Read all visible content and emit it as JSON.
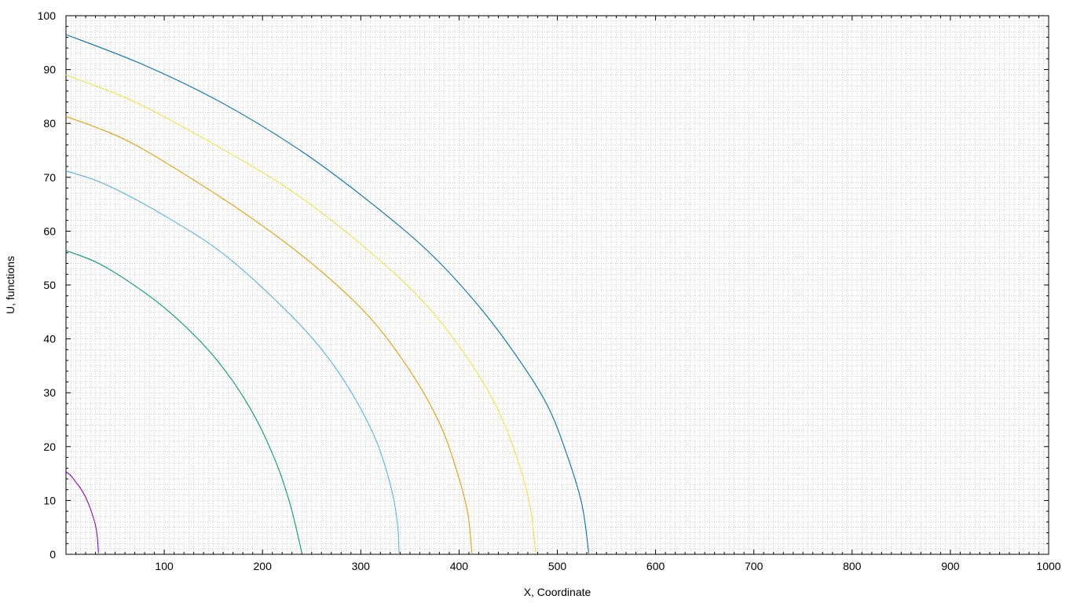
{
  "chart_data": {
    "type": "line",
    "xlabel": "X, Coordinate",
    "ylabel": "U, functions",
    "xlim": [
      0,
      1000
    ],
    "ylim": [
      0,
      100
    ],
    "x_ticks": [
      "100",
      "200",
      "300",
      "400",
      "500",
      "600",
      "700",
      "800",
      "900",
      "1000"
    ],
    "y_ticks": [
      "0",
      "10",
      "20",
      "30",
      "40",
      "50",
      "60",
      "70",
      "80",
      "90",
      "100"
    ],
    "grid": true,
    "series": [
      {
        "color": "#9400d3",
        "points": [
          [
            0,
            15.3
          ],
          [
            5,
            14.6
          ],
          [
            10,
            13.4
          ],
          [
            15,
            12.2
          ],
          [
            20,
            10.6
          ],
          [
            25,
            8.4
          ],
          [
            30,
            5.4
          ],
          [
            32,
            3.0
          ],
          [
            33,
            0.2
          ]
        ]
      },
      {
        "color": "#009e73",
        "points": [
          [
            0,
            56.4
          ],
          [
            30,
            54.3
          ],
          [
            60,
            51.1
          ],
          [
            100,
            45.8
          ],
          [
            140,
            38.9
          ],
          [
            170,
            32.1
          ],
          [
            195,
            24.6
          ],
          [
            215,
            16.5
          ],
          [
            227,
            10.0
          ],
          [
            235,
            4.3
          ],
          [
            240,
            0.2
          ]
        ]
      },
      {
        "color": "#56b4e9",
        "points": [
          [
            0,
            71.2
          ],
          [
            40,
            68.7
          ],
          [
            100,
            62.9
          ],
          [
            160,
            55.8
          ],
          [
            220,
            46.0
          ],
          [
            260,
            38.1
          ],
          [
            290,
            30.2
          ],
          [
            315,
            21.4
          ],
          [
            330,
            13.0
          ],
          [
            337,
            6.3
          ],
          [
            339,
            0.2
          ]
        ]
      },
      {
        "color": "#e69f00",
        "points": [
          [
            0,
            81.3
          ],
          [
            60,
            77.0
          ],
          [
            130,
            69.5
          ],
          [
            200,
            61.0
          ],
          [
            260,
            52.5
          ],
          [
            310,
            43.8
          ],
          [
            350,
            34.1
          ],
          [
            380,
            24.4
          ],
          [
            398,
            15.3
          ],
          [
            409,
            7.5
          ],
          [
            413,
            0.2
          ]
        ]
      },
      {
        "color": "#f0e442",
        "points": [
          [
            0,
            89.0
          ],
          [
            70,
            84.0
          ],
          [
            150,
            76.2
          ],
          [
            230,
            67.4
          ],
          [
            300,
            57.6
          ],
          [
            360,
            47.6
          ],
          [
            405,
            37.4
          ],
          [
            437,
            27.8
          ],
          [
            458,
            18.4
          ],
          [
            472,
            9.2
          ],
          [
            478,
            0.2
          ]
        ]
      },
      {
        "color": "#0072b2",
        "points": [
          [
            0,
            96.5
          ],
          [
            80,
            90.8
          ],
          [
            160,
            83.7
          ],
          [
            240,
            74.8
          ],
          [
            310,
            65.3
          ],
          [
            370,
            56.0
          ],
          [
            420,
            46.1
          ],
          [
            460,
            36.4
          ],
          [
            490,
            27.6
          ],
          [
            510,
            18.4
          ],
          [
            525,
            9.3
          ],
          [
            532,
            0.2
          ]
        ]
      }
    ]
  }
}
